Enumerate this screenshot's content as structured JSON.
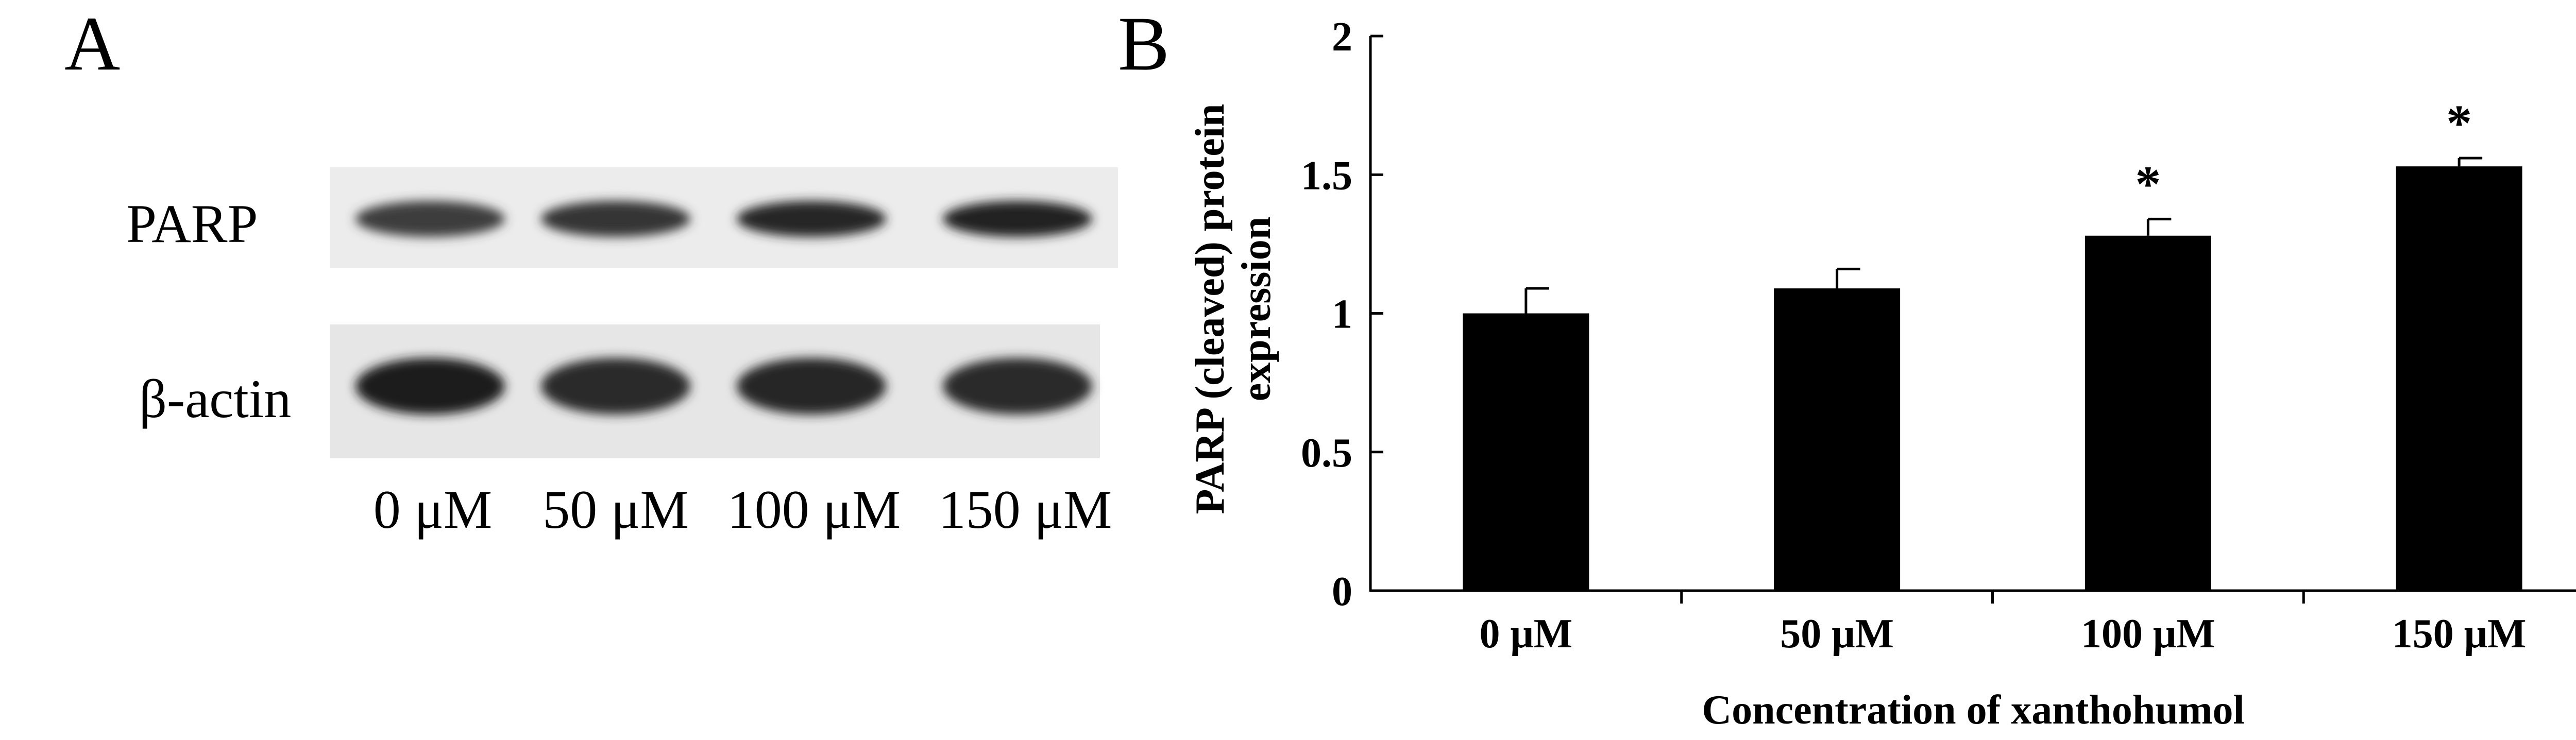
{
  "panel_a": {
    "letter": "A",
    "rows": [
      {
        "label": "PARP",
        "intensity": [
          0.82,
          0.86,
          0.92,
          0.94
        ]
      },
      {
        "label": "β-actin",
        "intensity": [
          0.97,
          0.9,
          0.92,
          0.9
        ]
      }
    ],
    "lanes": [
      "0 μM",
      "50 μM",
      "100 μM",
      "150 μM"
    ]
  },
  "panel_b": {
    "letter": "B"
  },
  "chart_data": {
    "type": "bar",
    "categories": [
      "0 μM",
      "50 μM",
      "100 μM",
      "150 μM"
    ],
    "values": [
      1.0,
      1.09,
      1.28,
      1.53
    ],
    "errors": [
      0.09,
      0.07,
      0.06,
      0.03
    ],
    "significance": [
      "",
      "",
      "*",
      "*"
    ],
    "ylim": [
      0,
      2
    ],
    "yticks": [
      "0",
      "0.5",
      "1",
      "1.5",
      "2"
    ],
    "xlabel": "Concentration of xanthohumol",
    "ylabel_lines": [
      "PARP (cleaved) protein",
      "expression"
    ],
    "bar_color": "#000000"
  }
}
